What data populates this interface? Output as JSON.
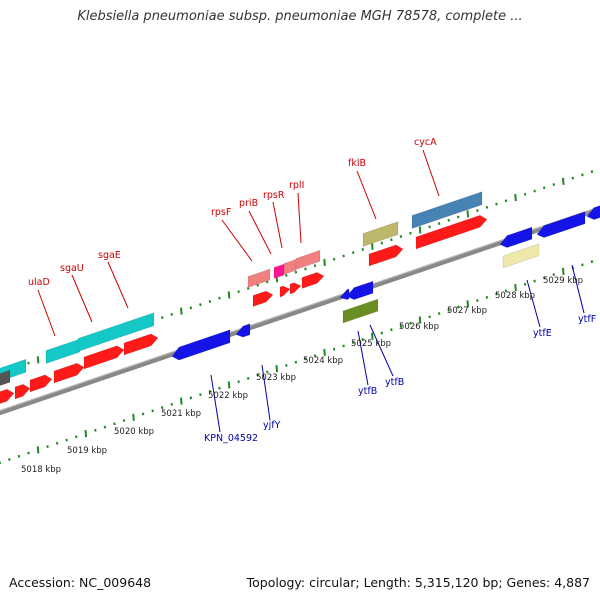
{
  "title": "Klebsiella pneumoniae subsp. pneumoniae MGH 78578, complete ...",
  "footer": {
    "accession": "Accession: NC_009648",
    "summary": "Topology: circular; Length: 5,315,120 bp; Genes: 4,887"
  },
  "colors": {
    "forward": "#ff1a1a",
    "reverse": "#1414e6",
    "rna": "#14c8c8",
    "backbone": "#888888",
    "tick": "#228822",
    "label_top": "#cc0000",
    "label_bottom": "#0000aa"
  },
  "scale": {
    "unit": "kbp",
    "labels": [
      "5018 kbp",
      "5019 kbp",
      "5020 kbp",
      "5021 kbp",
      "5022 kbp",
      "5023 kbp",
      "5024 kbp",
      "5025 kbp",
      "5026 kbp",
      "5027 kbp",
      "5028 kbp",
      "5029 kbp"
    ]
  },
  "genes_top": [
    "ulaD",
    "sgaU",
    "sgaE",
    "rpsF",
    "priB",
    "rpsR",
    "rplI",
    "fklB",
    "cycA"
  ],
  "genes_bottom": [
    "KPN_04592",
    "yjfY",
    "ytfB",
    "ytfB",
    "ytfE",
    "ytfF"
  ]
}
